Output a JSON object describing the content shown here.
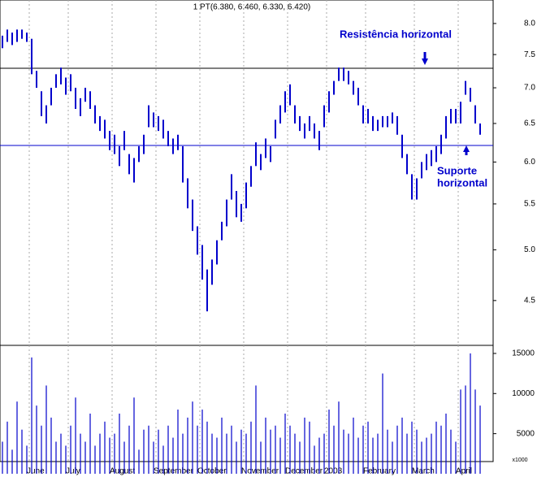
{
  "chart_data": {
    "type": "stock",
    "title": "1 PT(6.380, 6.460, 6.330, 6.420)",
    "color": "#0000cc",
    "log_y": true,
    "ylim": [
      4.1,
      8.4
    ],
    "yticks": [
      4.5,
      {
        "value": 5,
        "label": "5.0"
      },
      5.5,
      {
        "value": 6,
        "label": "6.0"
      },
      6.5,
      {
        "value": 7,
        "label": "7.0"
      },
      7.5,
      {
        "value": 8,
        "label": "8.0"
      }
    ],
    "volume_ylim": [
      0,
      15500
    ],
    "volume_yticks": [
      5000,
      10000,
      15000
    ],
    "volume_unit": "x1000",
    "resistance": {
      "value": 7.29,
      "label": "Resistência horizontal"
    },
    "support": {
      "value": 6.21,
      "label": [
        "Suporte",
        "horizontal"
      ]
    },
    "months": [
      {
        "name": null,
        "high": [
          7.8,
          7.9,
          7.85,
          7.9,
          7.9,
          7.85
        ],
        "low": [
          7.6,
          7.7,
          7.65,
          7.7,
          7.75,
          7.7
        ],
        "volume": [
          4000,
          6500,
          3000,
          9000,
          5500,
          3500
        ]
      },
      {
        "name": "June",
        "high": [
          7.75,
          7.25,
          6.95,
          6.75,
          7.0,
          7.2,
          7.3,
          7.15
        ],
        "low": [
          7.2,
          7.0,
          6.6,
          6.5,
          6.75,
          7.0,
          7.05,
          6.9
        ],
        "volume": [
          14500,
          8500,
          6000,
          11000,
          7000,
          4000,
          5000,
          3500
        ]
      },
      {
        "name": "July",
        "high": [
          7.2,
          7.0,
          6.85,
          7.0,
          6.95,
          6.75,
          6.6,
          6.55,
          6.4
        ],
        "low": [
          6.95,
          6.7,
          6.6,
          6.8,
          6.7,
          6.5,
          6.4,
          6.3,
          6.15
        ],
        "volume": [
          6000,
          9500,
          5000,
          4000,
          7500,
          3500,
          5000,
          6500,
          4500
        ]
      },
      {
        "name": "August",
        "high": [
          6.35,
          6.2,
          6.4,
          6.1,
          6.05,
          6.2,
          6.35,
          6.75,
          6.65
        ],
        "low": [
          6.1,
          5.95,
          6.15,
          5.85,
          5.75,
          6.0,
          6.1,
          6.45,
          6.45
        ],
        "volume": [
          5000,
          7500,
          4000,
          6000,
          9500,
          3000,
          5500,
          6000,
          4000
        ]
      },
      {
        "name": "September",
        "high": [
          6.6,
          6.55,
          6.4,
          6.3,
          6.35,
          6.2,
          5.8,
          5.55,
          5.25
        ],
        "low": [
          6.4,
          6.3,
          6.2,
          6.1,
          6.15,
          5.75,
          5.45,
          5.2,
          4.95
        ],
        "volume": [
          5500,
          3500,
          6000,
          4500,
          8000,
          5000,
          7000,
          9000,
          6000
        ]
      },
      {
        "name": "October",
        "high": [
          5.05,
          4.8,
          4.9,
          5.1,
          5.3,
          5.55,
          5.85,
          5.65,
          5.5
        ],
        "low": [
          4.7,
          4.4,
          4.65,
          4.85,
          5.1,
          5.25,
          5.55,
          5.35,
          5.3
        ],
        "volume": [
          8000,
          6500,
          5000,
          4500,
          7000,
          5000,
          6000,
          4000,
          5500
        ]
      },
      {
        "name": "November",
        "high": [
          5.75,
          5.95,
          6.25,
          6.1,
          6.3,
          6.2,
          6.55,
          6.75,
          6.95
        ],
        "low": [
          5.45,
          5.7,
          5.95,
          5.9,
          6.05,
          6.0,
          6.3,
          6.5,
          6.65
        ],
        "volume": [
          5000,
          6500,
          11000,
          4000,
          7000,
          5500,
          6000,
          4500,
          7500
        ]
      },
      {
        "name": "December",
        "high": [
          7.05,
          6.75,
          6.6,
          6.5,
          6.6,
          6.5,
          6.4,
          6.75
        ],
        "low": [
          6.75,
          6.5,
          6.4,
          6.3,
          6.4,
          6.3,
          6.15,
          6.45
        ],
        "volume": [
          6000,
          5000,
          4000,
          7000,
          6500,
          3500,
          4500,
          5000
        ]
      },
      {
        "name": "2003",
        "high": [
          6.95,
          7.1,
          7.3,
          7.3,
          7.25,
          7.1,
          7.0,
          6.75
        ],
        "low": [
          6.65,
          6.9,
          7.1,
          7.1,
          7.05,
          6.9,
          6.75,
          6.5
        ],
        "volume": [
          8000,
          6000,
          9000,
          5500,
          5000,
          7000,
          4500,
          6000
        ]
      },
      {
        "name": "February",
        "high": [
          6.7,
          6.6,
          6.55,
          6.6,
          6.6,
          6.65,
          6.6,
          6.35,
          6.1,
          5.85
        ],
        "low": [
          6.5,
          6.4,
          6.4,
          6.45,
          6.45,
          6.5,
          6.35,
          6.05,
          5.85,
          5.55
        ],
        "volume": [
          6500,
          4500,
          5000,
          12500,
          5500,
          4000,
          6000,
          7000,
          5000,
          6500
        ]
      },
      {
        "name": "March",
        "high": [
          5.8,
          6.0,
          6.1,
          6.15,
          6.2,
          6.35,
          6.6,
          6.7,
          6.7
        ],
        "low": [
          5.55,
          5.8,
          5.9,
          5.95,
          6.0,
          6.1,
          6.3,
          6.5,
          6.5
        ],
        "volume": [
          5500,
          4000,
          4500,
          5000,
          6500,
          6000,
          7500,
          5500,
          4000
        ]
      },
      {
        "name": "April",
        "high": [
          6.8,
          7.1,
          7.0,
          6.75,
          6.5
        ],
        "low": [
          6.5,
          6.9,
          6.8,
          6.5,
          6.35
        ],
        "volume": [
          10500,
          11000,
          15000,
          10500,
          8500
        ]
      }
    ]
  }
}
